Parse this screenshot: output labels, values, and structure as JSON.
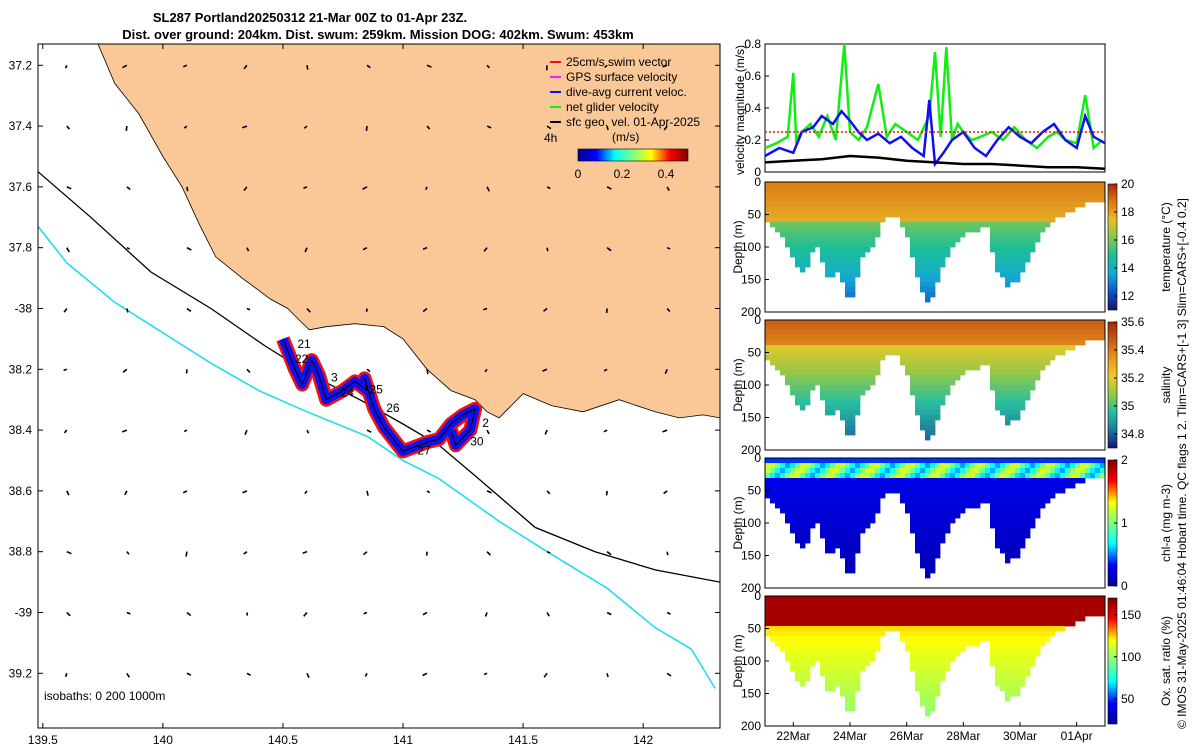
{
  "title": {
    "line1": "SL287 Portland20250312 21-Mar 00Z to 01-Apr 23Z.",
    "line2": "Dist. over ground: 204km. Dist. swum: 259km. Mission DOG: 402km. Swum: 453km"
  },
  "footer": "© IMOS 31-May-2025 01:46:04 Hobart time. QC flags 1  2. Tlim=CARS+[-1 3] Slim=CARS+[-0.4 0.2]",
  "colors": {
    "land": "#F9C896",
    "isobath_200": "#000000",
    "isobath_1000": "#22DDEE",
    "track_red": "#EE1111",
    "track_blue": "#1010EE",
    "net_green": "#11EE11"
  },
  "chart_data": [
    {
      "type": "map",
      "xlim": [
        139.48,
        142.32
      ],
      "ylim": [
        -39.38,
        -37.13
      ],
      "xticks": [
        139.5,
        140,
        140.5,
        141,
        141.5,
        142
      ],
      "xtick_labels": [
        "139.5",
        "140",
        "140.5",
        "141",
        "141.5",
        "142"
      ],
      "yticks": [
        -37.2,
        -37.4,
        -37.6,
        -37.8,
        -38,
        -38.2,
        -38.4,
        -38.6,
        -38.8,
        -39,
        -39.2
      ],
      "ytick_labels": [
        "37.2",
        "37.4",
        "37.6",
        "37.8",
        "-38",
        "38.2",
        "38.4",
        "38.6",
        "38.8",
        "-39",
        "39.2"
      ],
      "legend": {
        "entries": [
          {
            "label": "25cm/s swim vector",
            "color": "#EE1111"
          },
          {
            "label": "GPS surface velocity",
            "color": "#EE22EE"
          },
          {
            "label": "dive-avg current veloc.",
            "color": "#1010EE"
          },
          {
            "label": "net glider velocity",
            "color": "#11EE11"
          },
          {
            "label": "sfc geo. vel. 01-Apr-2025",
            "color": "#000000"
          }
        ],
        "duration": "4h",
        "units": "(m/s)",
        "colorbar_ticks": [
          "0",
          "0.2",
          "0.4"
        ],
        "colorbar_range": [
          0,
          0.5
        ]
      },
      "isobaths_text": "isobaths: 0   200  1000m",
      "isobath_200": [
        [
          139.48,
          -37.55
        ],
        [
          139.7,
          -37.7
        ],
        [
          139.95,
          -37.88
        ],
        [
          140.2,
          -38.0
        ],
        [
          140.42,
          -38.12
        ],
        [
          140.62,
          -38.22
        ],
        [
          140.82,
          -38.3
        ],
        [
          141.0,
          -38.38
        ],
        [
          141.15,
          -38.45
        ],
        [
          141.3,
          -38.55
        ],
        [
          141.55,
          -38.72
        ],
        [
          141.8,
          -38.8
        ],
        [
          142.05,
          -38.86
        ],
        [
          142.32,
          -38.9
        ]
      ],
      "isobath_1000": [
        [
          139.48,
          -37.73
        ],
        [
          139.6,
          -37.85
        ],
        [
          139.8,
          -37.98
        ],
        [
          140.0,
          -38.08
        ],
        [
          140.2,
          -38.18
        ],
        [
          140.4,
          -38.27
        ],
        [
          140.6,
          -38.34
        ],
        [
          140.85,
          -38.42
        ],
        [
          141.0,
          -38.5
        ],
        [
          141.15,
          -38.56
        ],
        [
          141.4,
          -38.7
        ],
        [
          141.6,
          -38.8
        ],
        [
          141.85,
          -38.92
        ],
        [
          142.05,
          -39.05
        ],
        [
          142.2,
          -39.12
        ],
        [
          142.3,
          -39.25
        ]
      ],
      "coast": [
        [
          139.73,
          -37.13
        ],
        [
          139.8,
          -37.26
        ],
        [
          139.9,
          -37.36
        ],
        [
          140.0,
          -37.5
        ],
        [
          140.08,
          -37.6
        ],
        [
          140.15,
          -37.72
        ],
        [
          140.22,
          -37.83
        ],
        [
          140.33,
          -37.9
        ],
        [
          140.45,
          -37.97
        ],
        [
          140.52,
          -38.0
        ],
        [
          140.57,
          -38.04
        ],
        [
          140.61,
          -38.07
        ],
        [
          140.68,
          -38.06
        ],
        [
          140.8,
          -38.05
        ],
        [
          140.92,
          -38.06
        ],
        [
          141.0,
          -38.1
        ],
        [
          141.1,
          -38.2
        ],
        [
          141.2,
          -38.27
        ],
        [
          141.3,
          -38.3
        ],
        [
          141.35,
          -38.34
        ],
        [
          141.4,
          -38.36
        ],
        [
          141.5,
          -38.28
        ],
        [
          141.62,
          -38.32
        ],
        [
          141.75,
          -38.34
        ],
        [
          141.9,
          -38.3
        ],
        [
          142.05,
          -38.34
        ],
        [
          142.15,
          -38.36
        ],
        [
          142.25,
          -38.35
        ],
        [
          142.32,
          -38.36
        ]
      ],
      "track": [
        [
          140.5,
          -38.1
        ],
        [
          140.55,
          -38.2
        ],
        [
          140.58,
          -38.25
        ],
        [
          140.62,
          -38.17
        ],
        [
          140.65,
          -38.22
        ],
        [
          140.68,
          -38.3
        ],
        [
          140.75,
          -38.27
        ],
        [
          140.8,
          -38.24
        ],
        [
          140.85,
          -38.27
        ],
        [
          140.84,
          -38.23
        ],
        [
          140.88,
          -38.33
        ],
        [
          140.92,
          -38.39
        ],
        [
          141.0,
          -38.47
        ],
        [
          141.1,
          -38.44
        ],
        [
          141.15,
          -38.43
        ],
        [
          141.2,
          -38.38
        ],
        [
          141.25,
          -38.35
        ],
        [
          141.3,
          -38.33
        ],
        [
          141.28,
          -38.4
        ],
        [
          141.22,
          -38.45
        ],
        [
          141.2,
          -38.4
        ]
      ],
      "labels": [
        {
          "text": "21",
          "lon": 140.56,
          "lat": -38.13
        },
        {
          "text": "22",
          "lon": 140.55,
          "lat": -38.18
        },
        {
          "text": "3",
          "lon": 140.7,
          "lat": -38.24
        },
        {
          "text": "24",
          "lon": 140.74,
          "lat": -38.29
        },
        {
          "text": "25",
          "lon": 140.86,
          "lat": -38.28
        },
        {
          "text": "26",
          "lon": 140.93,
          "lat": -38.34
        },
        {
          "text": "27",
          "lon": 141.06,
          "lat": -38.48
        },
        {
          "text": "2",
          "lon": 141.33,
          "lat": -38.39
        },
        {
          "text": "30",
          "lon": 141.28,
          "lat": -38.45
        }
      ]
    },
    {
      "type": "line",
      "ylabel": "velocity magnitude (m/s)",
      "ylim": [
        0,
        0.8
      ],
      "yticks": [
        0,
        0.2,
        0.4,
        0.6,
        0.8
      ],
      "ytick_labels": [
        "0",
        "0.2",
        "0.4",
        "0.6",
        "0.8"
      ],
      "xlim": [
        21,
        33
      ],
      "series": [
        {
          "name": "net glider velocity",
          "color": "#11EE11",
          "x": [
            21,
            21.4,
            21.8,
            22.0,
            22.1,
            22.3,
            22.6,
            22.9,
            23.2,
            23.5,
            23.8,
            24.0,
            24.3,
            24.6,
            25.0,
            25.3,
            25.6,
            26.0,
            26.4,
            26.8,
            27.0,
            27.2,
            27.4,
            27.6,
            27.8,
            28.0,
            28.3,
            28.6,
            29.0,
            29.4,
            29.8,
            30.2,
            30.6,
            31.0,
            31.3,
            31.6,
            32.0,
            32.3,
            32.6,
            32.9
          ],
          "y": [
            0.15,
            0.18,
            0.22,
            0.62,
            0.2,
            0.25,
            0.3,
            0.22,
            0.35,
            0.2,
            0.8,
            0.25,
            0.2,
            0.28,
            0.55,
            0.22,
            0.3,
            0.25,
            0.2,
            0.35,
            0.75,
            0.22,
            0.78,
            0.2,
            0.3,
            0.25,
            0.2,
            0.22,
            0.25,
            0.2,
            0.28,
            0.2,
            0.15,
            0.22,
            0.25,
            0.2,
            0.18,
            0.48,
            0.15,
            0.2
          ]
        },
        {
          "name": "dive-avg current veloc.",
          "color": "#1010EE",
          "x": [
            21,
            21.5,
            22,
            22.3,
            22.7,
            23.0,
            23.4,
            23.7,
            24.0,
            24.3,
            24.6,
            25.0,
            25.4,
            25.8,
            26.2,
            26.6,
            26.8,
            27.0,
            27.3,
            27.6,
            28.0,
            28.4,
            28.8,
            29.2,
            29.6,
            30.0,
            30.4,
            30.8,
            31.2,
            31.6,
            32.0,
            32.3,
            32.6,
            33.0
          ],
          "y": [
            0.1,
            0.15,
            0.12,
            0.25,
            0.28,
            0.35,
            0.3,
            0.38,
            0.32,
            0.25,
            0.2,
            0.24,
            0.18,
            0.22,
            0.15,
            0.1,
            0.45,
            0.05,
            0.12,
            0.2,
            0.25,
            0.15,
            0.1,
            0.2,
            0.28,
            0.22,
            0.18,
            0.25,
            0.3,
            0.2,
            0.15,
            0.35,
            0.22,
            0.18
          ]
        },
        {
          "name": "sfc geo. vel.",
          "color": "#000000",
          "x": [
            21,
            22,
            23,
            24,
            25,
            26,
            27,
            28,
            29,
            30,
            31,
            32,
            33
          ],
          "y": [
            0.06,
            0.07,
            0.08,
            0.1,
            0.09,
            0.07,
            0.06,
            0.05,
            0.05,
            0.04,
            0.03,
            0.03,
            0.02
          ]
        },
        {
          "name": "25cm/s swim vector",
          "color": "#EE1111",
          "dashed": true,
          "x": [
            21,
            33
          ],
          "y": [
            0.25,
            0.25
          ]
        }
      ]
    },
    {
      "type": "heatmap",
      "ylabel": "Depth (m)",
      "yticks": [
        0,
        50,
        100,
        150,
        200
      ],
      "ytick_labels": [
        "0",
        "50",
        "100",
        "150",
        "200"
      ],
      "colorbar_label": "temperature (°C)",
      "colorbar_range": [
        11,
        20
      ],
      "colorbar_ticks": [
        12,
        14,
        16,
        18,
        20
      ],
      "colorbar_tick_labels": [
        "12",
        "14",
        "16",
        "18",
        "20"
      ],
      "colormap": "parula-like",
      "mixed_depth": 60
    },
    {
      "type": "heatmap",
      "ylabel": "Depth (m)",
      "yticks": [
        0,
        50,
        100,
        150,
        200
      ],
      "ytick_labels": [
        "0",
        "50",
        "100",
        "150",
        "200"
      ],
      "colorbar_label": "salinity",
      "colorbar_range": [
        34.7,
        35.6
      ],
      "colorbar_ticks": [
        34.8,
        35,
        35.2,
        35.4,
        35.6
      ],
      "colorbar_tick_labels": [
        "34.8",
        "35",
        "35.2",
        "35.4",
        "35.6"
      ],
      "colormap": "salinity",
      "mixed_depth": 40
    },
    {
      "type": "heatmap",
      "ylabel": "Depth (m)",
      "yticks": [
        0,
        50,
        100,
        150,
        200
      ],
      "ytick_labels": [
        "0",
        "50",
        "100",
        "150",
        "200"
      ],
      "colorbar_label": "chl-a (mg m-3)",
      "colorbar_range": [
        0,
        2
      ],
      "colorbar_ticks": [
        0,
        1,
        2
      ],
      "colorbar_tick_labels": [
        "0",
        "1",
        "2"
      ],
      "colormap": "jet",
      "mixed_depth": 30
    },
    {
      "type": "heatmap",
      "ylabel": "Depth (m)",
      "yticks": [
        0,
        50,
        100,
        150,
        200
      ],
      "ytick_labels": [
        "0",
        "50",
        "100",
        "150",
        "200"
      ],
      "colorbar_label": "Ox. sat. ratio (%)",
      "colorbar_range": [
        20,
        170
      ],
      "colorbar_ticks": [
        50,
        100,
        150
      ],
      "colorbar_tick_labels": [
        "50",
        "100",
        "150"
      ],
      "colormap": "jet",
      "mixed_depth": 50,
      "xticks": [
        22,
        24,
        26,
        28,
        30,
        32
      ],
      "xtick_labels": [
        "22Mar",
        "24Mar",
        "26Mar",
        "28Mar",
        "30Mar",
        "01Apr"
      ]
    }
  ],
  "dive_profile": {
    "x": [
      21,
      21.6,
      22,
      22.4,
      22.8,
      23.2,
      23.6,
      24.0,
      24.4,
      24.8,
      25.2,
      25.6,
      26.0,
      26.4,
      26.8,
      27.2,
      27.6,
      28.0,
      28.4,
      28.8,
      29.2,
      29.6,
      30.0,
      30.4,
      30.8,
      31.2,
      31.6,
      32.0,
      32.4,
      33.0
    ],
    "depth": [
      60,
      80,
      120,
      140,
      90,
      150,
      140,
      190,
      120,
      100,
      60,
      50,
      80,
      150,
      195,
      140,
      100,
      80,
      80,
      60,
      140,
      160,
      150,
      110,
      80,
      60,
      50,
      40,
      30,
      30
    ]
  }
}
